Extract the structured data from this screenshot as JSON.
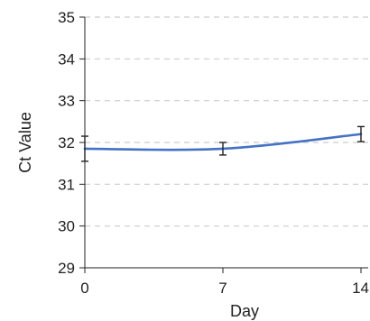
{
  "chart_data": {
    "type": "line",
    "title": "",
    "xlabel": "Day",
    "ylabel": "Ct Value",
    "x": [
      0,
      7,
      14
    ],
    "x_ticks": [
      "0",
      "7",
      "14"
    ],
    "y_ticks": [
      "29",
      "30",
      "31",
      "32",
      "33",
      "34",
      "35"
    ],
    "xlim": [
      0,
      14
    ],
    "ylim": [
      29,
      35
    ],
    "grid": "horizontal-dashed",
    "series": [
      {
        "values": [
          31.85,
          31.85,
          32.2
        ],
        "error": [
          0.3,
          0.15,
          0.18
        ],
        "color": "#4472c4"
      }
    ],
    "colors": {
      "line": "#4472c4",
      "grid": "#cccccc",
      "axis": "#222222",
      "error_bar": "#222222"
    }
  }
}
